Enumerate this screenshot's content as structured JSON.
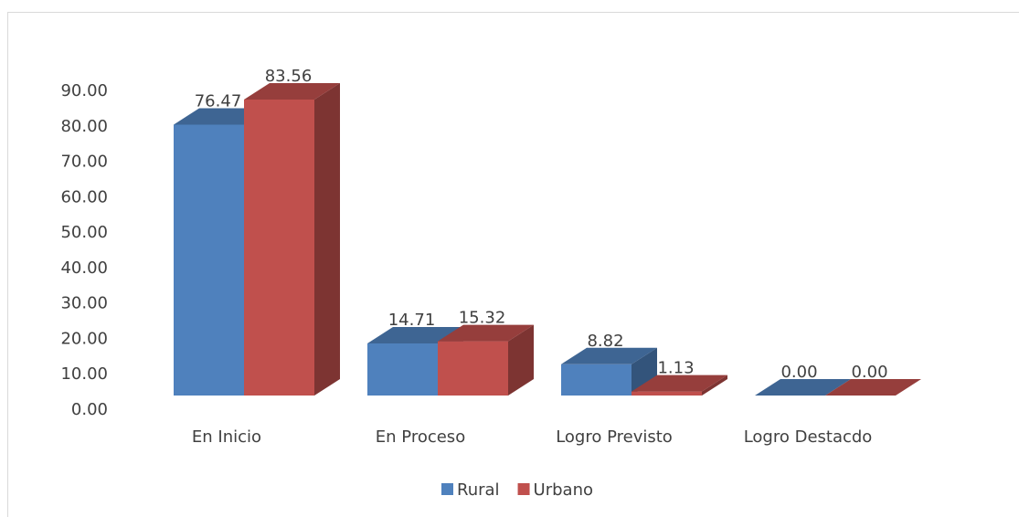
{
  "chart_data": {
    "type": "bar3d",
    "categories": [
      "En Inicio",
      "En Proceso",
      "Logro Previsto",
      "Logro Destacdo"
    ],
    "series": [
      {
        "name": "Rural",
        "color": "#4f81bd",
        "values": [
          76.47,
          14.71,
          8.82,
          0
        ],
        "value_labels": [
          "76.47",
          "14.71",
          "8.82",
          "0.00"
        ]
      },
      {
        "name": "Urbano",
        "color": "#c0504d",
        "values": [
          83.56,
          15.32,
          1.13,
          0
        ],
        "value_labels": [
          "83.56",
          "15.32",
          "1.13",
          "0.00"
        ]
      }
    ],
    "ylim": [
      0,
      90
    ],
    "yticks": [
      {
        "value": 0,
        "label": "0.00"
      },
      {
        "value": 10,
        "label": "10.00"
      },
      {
        "value": 20,
        "label": "20.00"
      },
      {
        "value": 30,
        "label": "30.00"
      },
      {
        "value": 40,
        "label": "40.00"
      },
      {
        "value": 50,
        "label": "50.00"
      },
      {
        "value": 60,
        "label": "60.00"
      },
      {
        "value": 70,
        "label": "70.00"
      },
      {
        "value": 80,
        "label": "80.00"
      },
      {
        "value": 90,
        "label": "90.00"
      }
    ],
    "legend": "bottom"
  }
}
